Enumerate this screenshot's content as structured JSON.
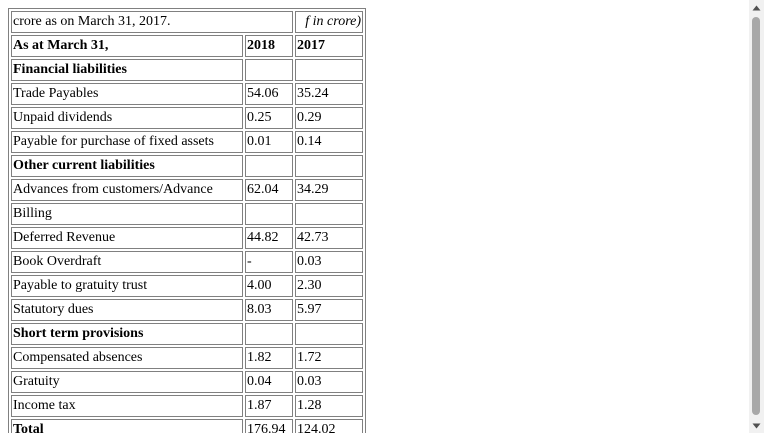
{
  "table": {
    "caption_left": "crore as on March 31, 2017.",
    "caption_right": "f in crore)",
    "header": {
      "label": "As at March 31,",
      "col1": "2018",
      "col2": "2017"
    },
    "rows": [
      {
        "label": "Financial liabilities",
        "v1": "",
        "v2": "",
        "bold": true
      },
      {
        "label": "Trade Payables",
        "v1": "54.06",
        "v2": "35.24"
      },
      {
        "label": "Unpaid dividends",
        "v1": "0.25",
        "v2": "0.29"
      },
      {
        "label": "Payable for purchase of fixed assets",
        "v1": "0.01",
        "v2": "0.14"
      },
      {
        "label": "Other current liabilities",
        "v1": "",
        "v2": "",
        "bold": true
      },
      {
        "label": "Advances from customers/Advance",
        "v1": "62.04",
        "v2": "34.29"
      },
      {
        "label": "Billing",
        "v1": "",
        "v2": ""
      },
      {
        "label": "Deferred Revenue",
        "v1": "44.82",
        "v2": "42.73"
      },
      {
        "label": "Book Overdraft",
        "v1": "-",
        "v2": "0.03"
      },
      {
        "label": "Payable to gratuity trust",
        "v1": "4.00",
        "v2": "2.30"
      },
      {
        "label": "Statutory dues",
        "v1": "8.03",
        "v2": "5.97"
      },
      {
        "label": "Short term provisions",
        "v1": "",
        "v2": "",
        "bold": true
      },
      {
        "label": "Compensated absences",
        "v1": "1.82",
        "v2": "1.72"
      },
      {
        "label": "Gratuity",
        "v1": "0.04",
        "v2": "0.03"
      },
      {
        "label": "Income tax",
        "v1": "1.87",
        "v2": "1.28"
      },
      {
        "label": "Total",
        "v1": "176.94",
        "v2": "124.02",
        "bold": true
      }
    ]
  },
  "scrollbar": {
    "up_icon": "triangle-up-icon",
    "down_icon": "triangle-down-icon",
    "color_track": "#f1f1f1",
    "color_thumb": "#a8a8a8"
  }
}
